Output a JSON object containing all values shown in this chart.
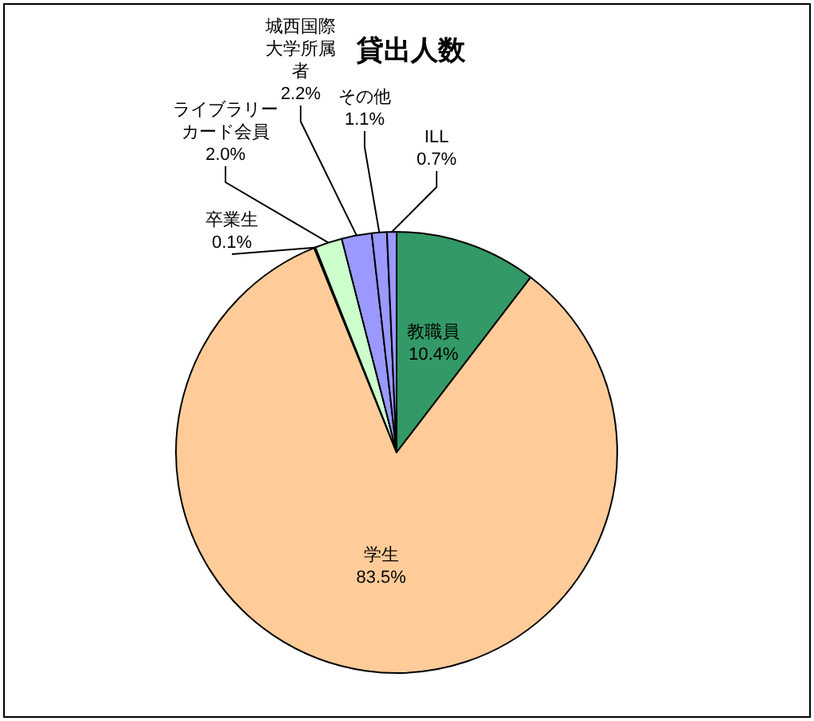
{
  "chart_data": {
    "type": "pie",
    "title": "貸出人数",
    "categories": [
      "教職員",
      "学生",
      "卒業生",
      "ライブラリーカード会員",
      "城西国際大学所属者",
      "その他",
      "ILL"
    ],
    "values": [
      10.4,
      83.5,
      0.1,
      2.0,
      2.2,
      1.1,
      0.7
    ],
    "value_labels": [
      "10.4%",
      "83.5%",
      "0.1%",
      "2.0%",
      "2.2%",
      "1.1%",
      "0.7%"
    ],
    "colors": [
      "#339966",
      "#ffcc99",
      "#ccffff",
      "#ccffcc",
      "#9999ff",
      "#9999ff",
      "#9999ff"
    ],
    "legend": false
  }
}
